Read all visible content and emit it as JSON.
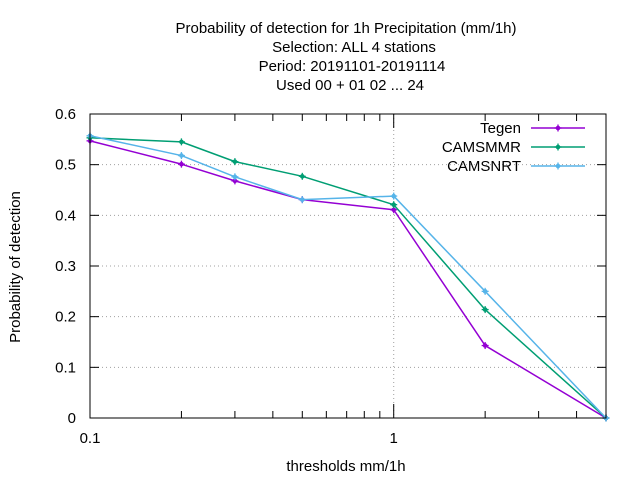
{
  "chart_data": {
    "type": "line",
    "title_lines": [
      "Probability of detection  for 1h Precipitation (mm/1h)",
      "Selection: ALL      4 stations",
      "Period: 20191101-20191114",
      "Used  00 + 01 02 ... 24"
    ],
    "xlabel": "thresholds mm/1h",
    "ylabel": "Probability of detection",
    "xscale": "log",
    "xlim": [
      0.1,
      5
    ],
    "ylim": [
      0,
      0.6
    ],
    "x_ticks": [
      0.1,
      1
    ],
    "x_tick_labels": [
      "0.1",
      "1"
    ],
    "x_minor_ticks": [
      0.2,
      0.3,
      0.4,
      0.5,
      0.6,
      0.7,
      0.8,
      0.9,
      2,
      3,
      4
    ],
    "y_ticks": [
      0,
      0.1,
      0.2,
      0.3,
      0.4,
      0.5,
      0.6
    ],
    "y_tick_labels": [
      "0",
      "0.1",
      "0.2",
      "0.3",
      "0.4",
      "0.5",
      "0.6"
    ],
    "grid": true,
    "legend_position": "top-right",
    "series": [
      {
        "name": "Tegen",
        "color": "#9400d3",
        "x": [
          0.1,
          0.2,
          0.3,
          0.5,
          1,
          2,
          5
        ],
        "y": [
          0.547,
          0.501,
          0.468,
          0.431,
          0.411,
          0.143,
          0.0
        ]
      },
      {
        "name": "CAMSMMR",
        "color": "#009e73",
        "x": [
          0.1,
          0.2,
          0.3,
          0.5,
          1,
          2,
          5
        ],
        "y": [
          0.553,
          0.545,
          0.506,
          0.477,
          0.421,
          0.214,
          0.0
        ]
      },
      {
        "name": "CAMSNRT",
        "color": "#56b4e9",
        "x": [
          0.1,
          0.2,
          0.3,
          0.5,
          1,
          2,
          5
        ],
        "y": [
          0.557,
          0.518,
          0.476,
          0.431,
          0.438,
          0.25,
          0.0
        ]
      }
    ]
  }
}
